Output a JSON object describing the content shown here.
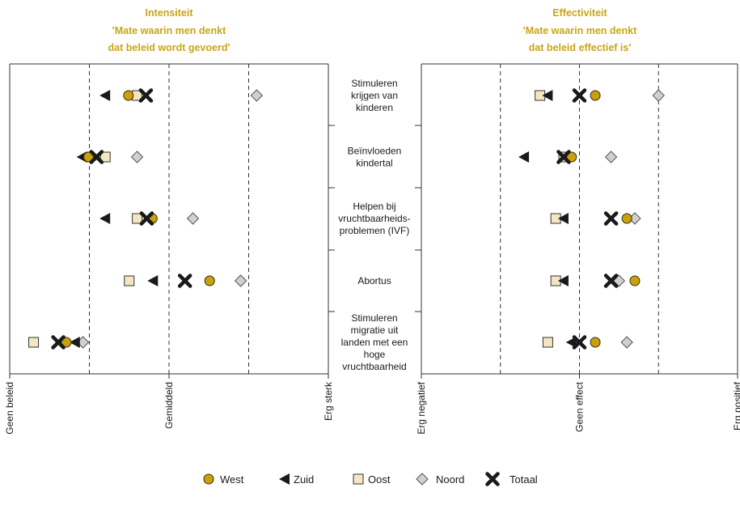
{
  "colors": {
    "title": "#c9a614",
    "West": "#c9a010",
    "Zuid": "#1a1a1a",
    "Oost": "#f4e6c2",
    "Noord": "#d0d0d0",
    "Totaal": "#1a1a1a",
    "frame": "#333333"
  },
  "chart_data": [
    {
      "type": "scatter",
      "panel": "intensiteit",
      "title": "Intensiteit",
      "subtitle": [
        "'Mate waarin men denkt",
        "dat beleid wordt gevoerd'"
      ],
      "xlim": [
        0,
        4
      ],
      "ticks": [
        {
          "value": 0,
          "label": "Geen beleid"
        },
        {
          "value": 2,
          "label": "Gemiddeld"
        },
        {
          "value": 4,
          "label": "Erg sterk"
        }
      ],
      "gridlines": [
        1,
        2,
        3
      ],
      "categories": [
        "Stimuleren krijgen van kinderen",
        "Beïnvloeden kindertal",
        "Helpen bij vruchtbaarheidsproblemen (IVF)",
        "Abortus",
        "Stimuleren migratie uit landen met een hoge vruchtbaarheid"
      ],
      "series": [
        {
          "name": "West",
          "marker": "circle",
          "values": [
            1.49,
            0.99,
            1.79,
            2.51,
            0.71
          ]
        },
        {
          "name": "Zuid",
          "marker": "triangle",
          "values": [
            1.2,
            0.91,
            1.2,
            1.8,
            0.82
          ]
        },
        {
          "name": "Oost",
          "marker": "square",
          "values": [
            1.6,
            1.2,
            1.6,
            1.5,
            0.3
          ]
        },
        {
          "name": "Noord",
          "marker": "diamond",
          "values": [
            3.1,
            1.6,
            2.3,
            2.9,
            0.92
          ]
        },
        {
          "name": "Totaal",
          "marker": "cross",
          "values": [
            1.71,
            1.09,
            1.72,
            2.2,
            0.61
          ]
        }
      ]
    },
    {
      "type": "scatter",
      "panel": "effectiviteit",
      "title": "Effectiviteit",
      "subtitle": [
        "'Mate waarin men denkt",
        "dat beleid effectief is'"
      ],
      "xlim": [
        -2,
        2
      ],
      "ticks": [
        {
          "value": -2,
          "label": "Erg negatief"
        },
        {
          "value": 0,
          "label": "Geen effect"
        },
        {
          "value": 2,
          "label": "Erg positief"
        }
      ],
      "gridlines": [
        -1,
        0,
        1
      ],
      "categories": [
        "Stimuleren krijgen van kinderen",
        "Beïnvloeden kindertal",
        "Helpen bij vruchtbaarheidsproblemen (IVF)",
        "Abortus",
        "Stimuleren migratie uit landen met een hoge vruchtbaarheid"
      ],
      "series": [
        {
          "name": "West",
          "marker": "circle",
          "values": [
            0.2,
            -0.1,
            0.6,
            0.7,
            0.2
          ]
        },
        {
          "name": "Zuid",
          "marker": "triangle",
          "values": [
            -0.4,
            -0.7,
            -0.2,
            -0.2,
            -0.1
          ]
        },
        {
          "name": "Oost",
          "marker": "square",
          "values": [
            -0.5,
            -0.2,
            -0.3,
            -0.3,
            -0.4
          ]
        },
        {
          "name": "Noord",
          "marker": "diamond",
          "values": [
            1.0,
            0.4,
            0.7,
            0.5,
            0.6
          ]
        },
        {
          "name": "Totaal",
          "marker": "cross",
          "values": [
            0.0,
            -0.2,
            0.4,
            0.4,
            0.0
          ]
        }
      ]
    }
  ],
  "category_lines": [
    [
      "Stimuleren",
      "krijgen van",
      "kinderen"
    ],
    [
      "Beïnvloeden",
      "kindertal"
    ],
    [
      "Helpen bij",
      "vruchtbaarheids-",
      "problemen (IVF)"
    ],
    [
      "Abortus"
    ],
    [
      "Stimuleren",
      "migratie uit",
      "landen met een",
      "hoge",
      "vruchtbaarheid"
    ]
  ],
  "legend": [
    {
      "name": "West",
      "marker": "circle"
    },
    {
      "name": "Zuid",
      "marker": "triangle"
    },
    {
      "name": "Oost",
      "marker": "square"
    },
    {
      "name": "Noord",
      "marker": "diamond"
    },
    {
      "name": "Totaal",
      "marker": "cross"
    }
  ]
}
